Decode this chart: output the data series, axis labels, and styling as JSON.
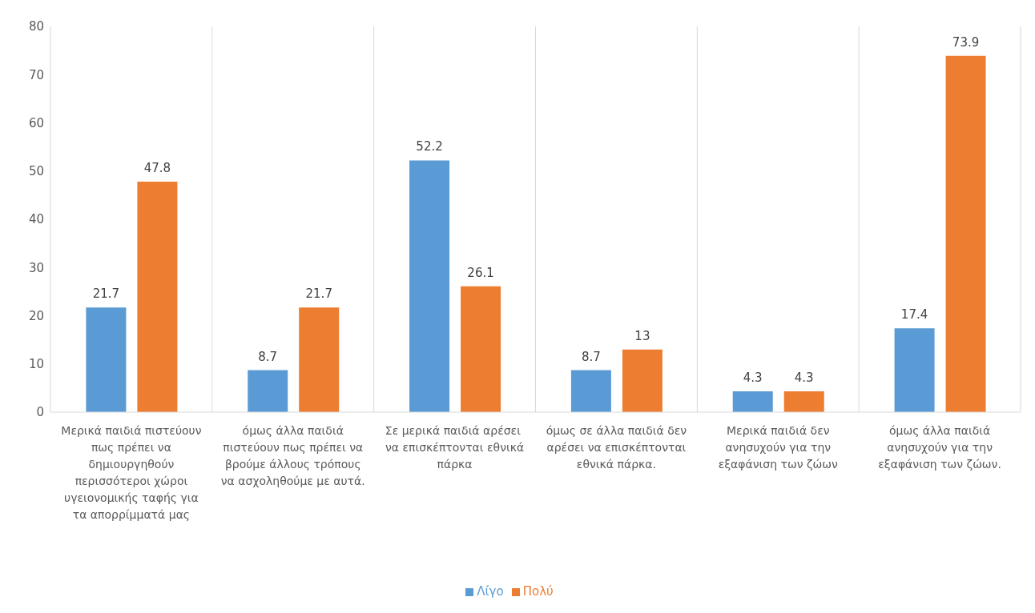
{
  "chart_data": {
    "type": "bar",
    "categories": [
      "Μερικά παιδιά πιστεύουν πως πρέπει να δημιουργηθούν περισσότεροι χώροι υγειονομικής ταφής για τα απορρίμματά μας",
      "όμως άλλα παιδιά πιστεύουν πως πρέπει να βρούμε άλλους τρόπους να ασχοληθούμε με αυτά.",
      "Σε μερικά παιδιά αρέσει  να επισκέπτονται εθνικά πάρκα",
      "όμως σε άλλα παιδιά δεν αρέσει να επισκέπτονται εθνικά πάρκα.",
      "Μερικά παιδιά δεν ανησυχούν για την εξαφάνιση των ζώων",
      "όμως άλλα παιδιά ανησυχούν για την εξαφάνιση των ζώων."
    ],
    "series": [
      {
        "name": "Λίγο",
        "color": "#5b9bd5",
        "values": [
          21.7,
          8.7,
          52.2,
          8.7,
          4.3,
          17.4
        ]
      },
      {
        "name": "Πολύ",
        "color": "#ed7d31",
        "values": [
          47.8,
          21.7,
          26.1,
          13,
          4.3,
          73.9
        ]
      }
    ],
    "ylim": [
      0,
      80
    ],
    "yticks": [
      0,
      10,
      20,
      30,
      40,
      50,
      60,
      70,
      80
    ],
    "grid": "x",
    "legend": "bottom",
    "data_labels": true
  }
}
